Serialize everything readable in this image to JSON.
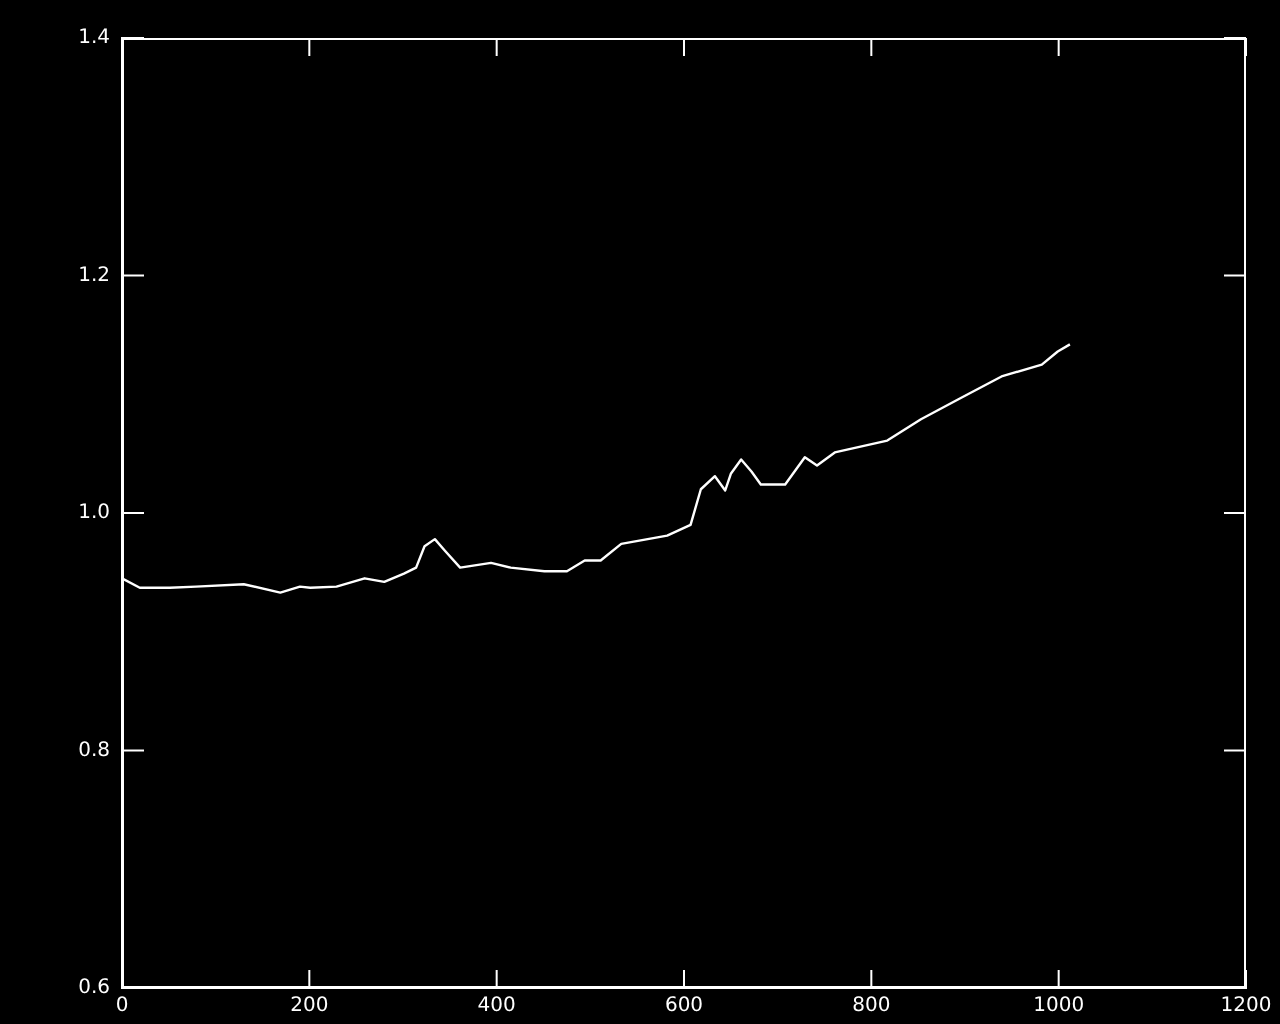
{
  "chart_data": {
    "type": "line",
    "x": [
      0,
      19,
      51,
      79,
      130,
      169,
      190,
      201,
      229,
      259,
      280,
      301,
      314,
      323,
      334,
      345,
      361,
      394,
      415,
      451,
      475,
      494,
      511,
      533,
      582,
      607,
      618,
      633,
      644,
      650,
      661,
      672,
      682,
      708,
      729,
      742,
      761,
      817,
      853,
      896,
      939,
      982,
      999,
      1012
    ],
    "series": [
      {
        "color": "#ffffff",
        "values": [
          0.945,
          0.937,
          0.937,
          0.938,
          0.94,
          0.933,
          0.938,
          0.937,
          0.938,
          0.945,
          0.942,
          0.949,
          0.954,
          0.972,
          0.978,
          0.968,
          0.954,
          0.958,
          0.954,
          0.951,
          0.951,
          0.96,
          0.96,
          0.974,
          0.981,
          0.99,
          1.02,
          1.031,
          1.019,
          1.033,
          1.045,
          1.035,
          1.024,
          1.024,
          1.047,
          1.04,
          1.051,
          1.061,
          1.079,
          1.097,
          1.115,
          1.125,
          1.136,
          1.142
        ]
      }
    ],
    "xlim": [
      0,
      1200
    ],
    "xticks": [
      0,
      200,
      400,
      600,
      800,
      1000,
      1200
    ],
    "ylim": [
      0.6,
      1.4
    ],
    "yticks": [
      {
        "value": 0.6,
        "label": "0.6"
      },
      {
        "value": 0.8,
        "label": "0.8"
      },
      {
        "value": 1.0,
        "label": "1.0"
      },
      {
        "value": 1.2,
        "label": "1.2"
      },
      {
        "value": 1.4,
        "label": "1.4"
      }
    ],
    "grid": false,
    "legend": false,
    "marker": "none",
    "line_style": "solid"
  }
}
